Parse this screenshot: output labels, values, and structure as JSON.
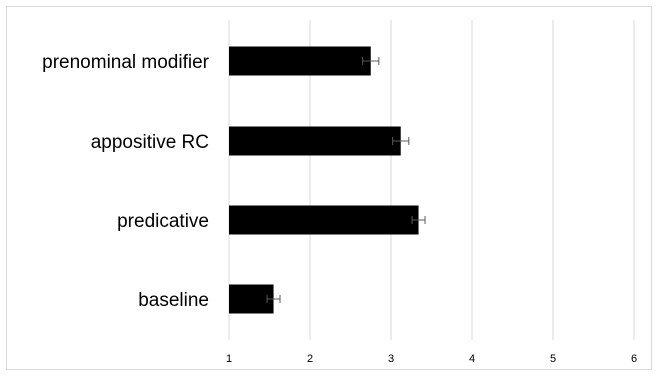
{
  "chart_data": {
    "type": "bar",
    "orientation": "horizontal",
    "categories": [
      "prenominal modifier",
      "appositive RC",
      "predicative",
      "baseline"
    ],
    "values": [
      2.75,
      3.12,
      3.34,
      1.55
    ],
    "error": [
      0.1,
      0.1,
      0.08,
      0.08
    ],
    "xlim": [
      1,
      6
    ],
    "xticks": [
      "1",
      "2",
      "3",
      "4",
      "5",
      "6"
    ],
    "grid": true,
    "bar_color": "#000000",
    "grid_color": "#d9d9d9",
    "error_color": "#595959"
  }
}
